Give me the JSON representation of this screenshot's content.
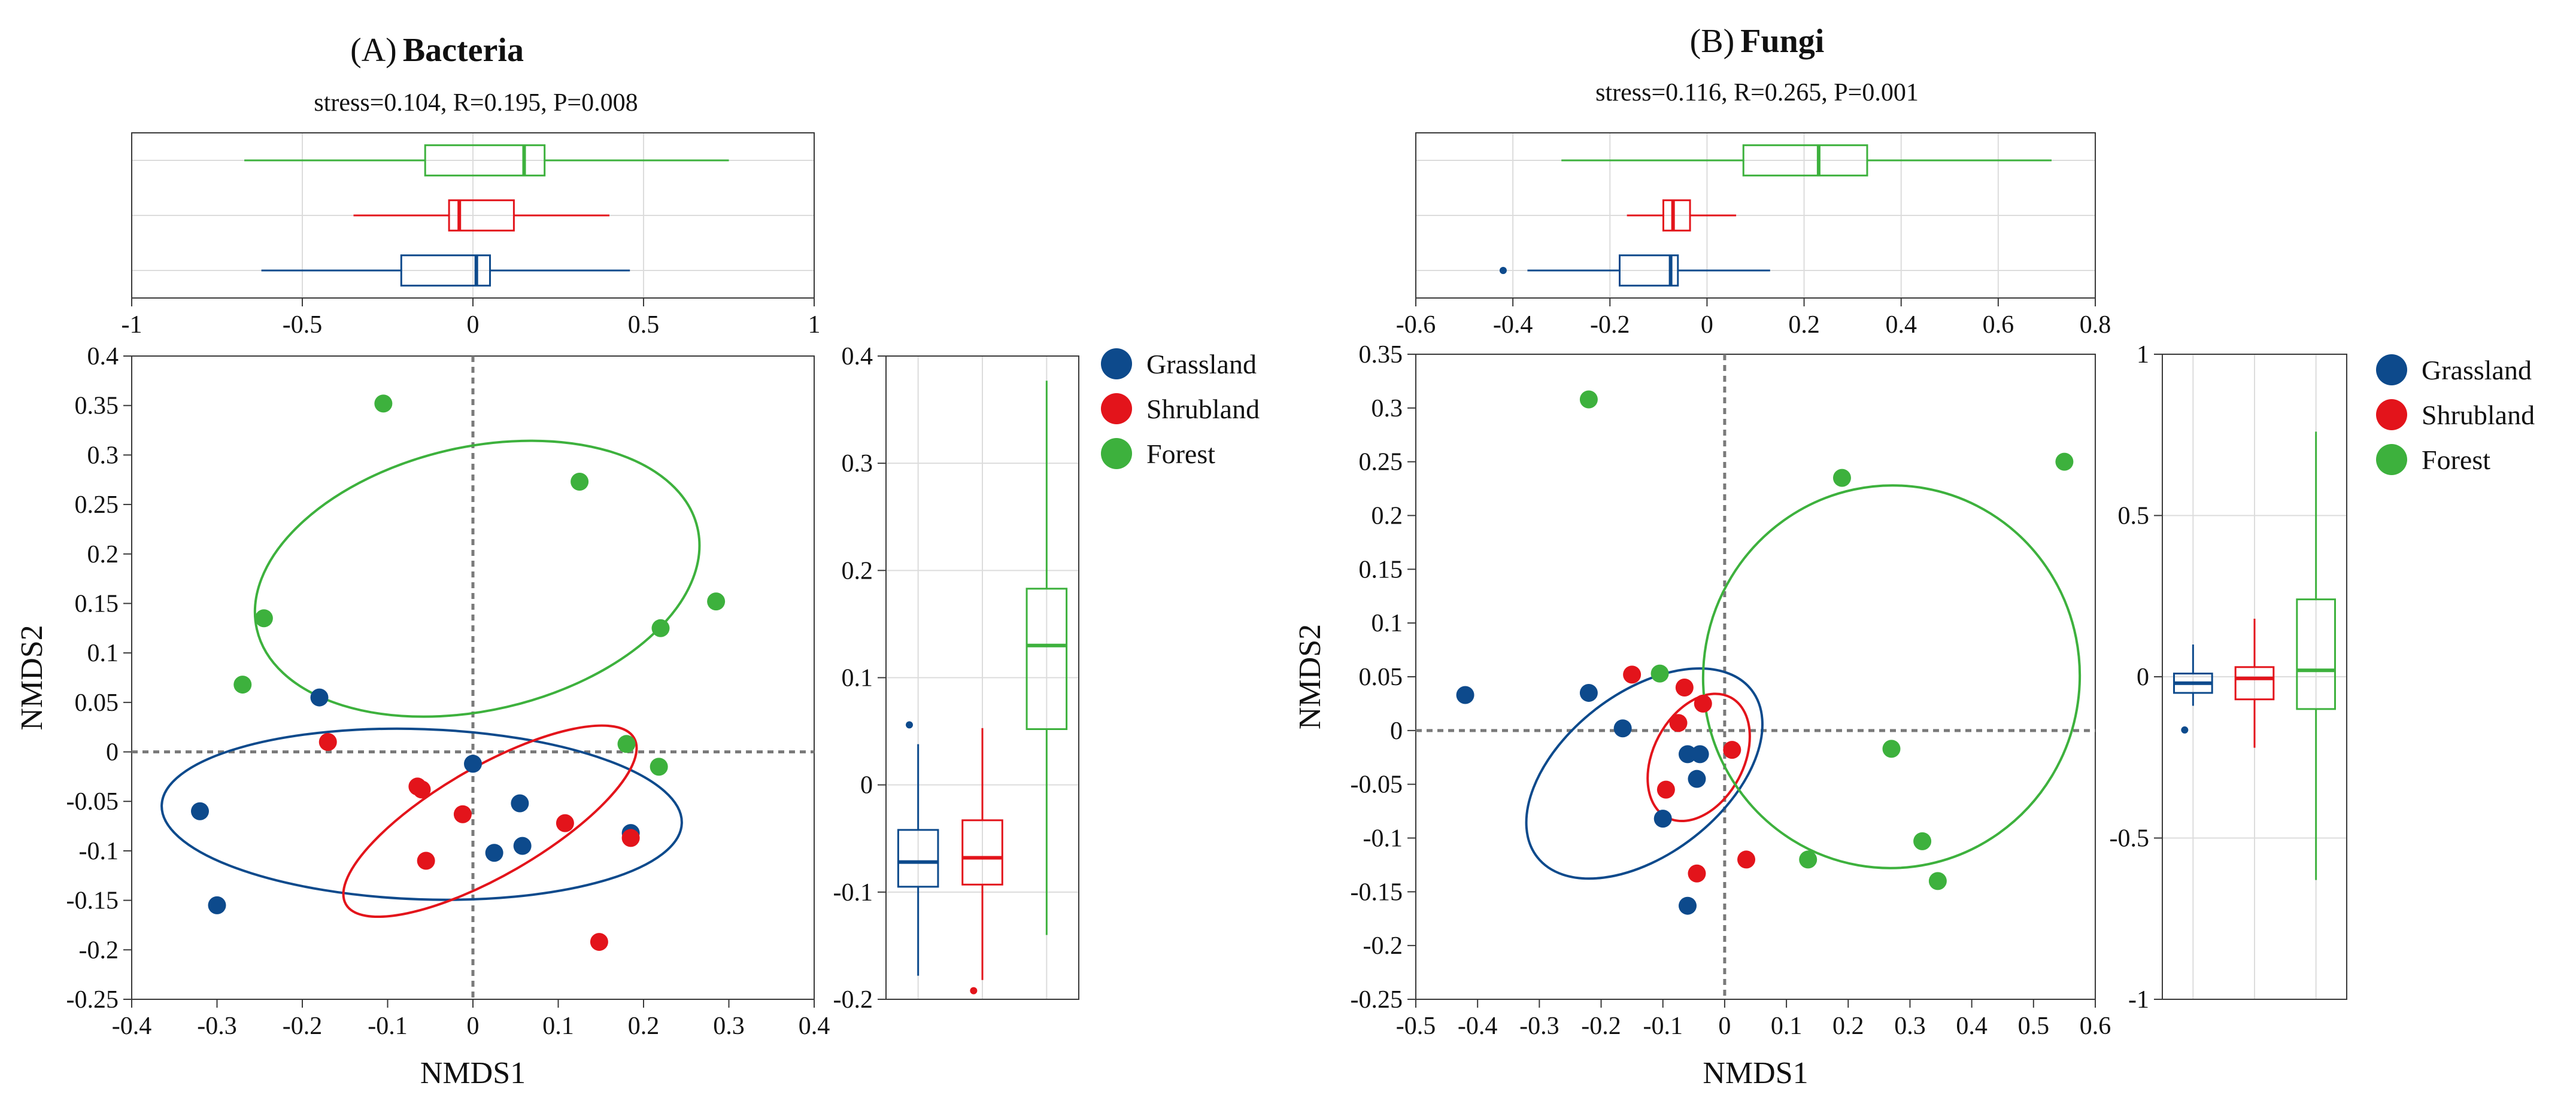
{
  "colors": {
    "grassland": "#0d4a8c",
    "shrubland": "#e3141b",
    "forest": "#3db13d",
    "grid": "#dcdcdc",
    "zero_line": "#7a7a7a",
    "frame": "#3a3a3a"
  },
  "legend": {
    "items": [
      {
        "key": "grassland",
        "label": "Grassland"
      },
      {
        "key": "shrubland",
        "label": "Shrubland"
      },
      {
        "key": "forest",
        "label": "Forest"
      }
    ]
  },
  "chart_data": [
    {
      "type": "scatter",
      "panel_label": "(A)",
      "title": "Bacteria",
      "subtitle": "stress=0.104, R=0.195, P=0.008",
      "xlabel": "NMDS1",
      "ylabel": "NMDS2",
      "xlim": [
        -0.4,
        0.4
      ],
      "ylim": [
        -0.25,
        0.4
      ],
      "x_ticks": [
        -0.4,
        -0.3,
        -0.2,
        -0.1,
        0,
        0.1,
        0.2,
        0.3,
        0.4
      ],
      "x_tick_labels": [
        "-0.4",
        "-0.3",
        "-0.2",
        "-0.1",
        "0",
        "0.1",
        "0.2",
        "0.3",
        "0.4"
      ],
      "y_ticks": [
        -0.25,
        -0.2,
        -0.15,
        -0.1,
        -0.05,
        0,
        0.05,
        0.1,
        0.15,
        0.2,
        0.25,
        0.3,
        0.35,
        0.4
      ],
      "y_tick_labels": [
        "-0.25",
        "-0.2",
        "-0.15",
        "-0.1",
        "-0.05",
        "0",
        "0.05",
        "0.1",
        "0.15",
        "0.2",
        "0.25",
        "0.3",
        "0.35",
        "0.4"
      ],
      "series": [
        {
          "name": "Grassland",
          "key": "grassland",
          "points": [
            [
              -0.18,
              0.055
            ],
            [
              0,
              -0.012
            ],
            [
              -0.32,
              -0.06
            ],
            [
              -0.3,
              -0.155
            ],
            [
              0.055,
              -0.052
            ],
            [
              0.025,
              -0.102
            ],
            [
              0.058,
              -0.095
            ],
            [
              0.185,
              -0.082
            ]
          ]
        },
        {
          "name": "Shrubland",
          "key": "shrubland",
          "points": [
            [
              -0.17,
              0.01
            ],
            [
              -0.065,
              -0.035
            ],
            [
              -0.06,
              -0.038
            ],
            [
              -0.012,
              -0.063
            ],
            [
              -0.055,
              -0.11
            ],
            [
              0.108,
              -0.072
            ],
            [
              0.185,
              -0.087
            ],
            [
              0.148,
              -0.192
            ]
          ]
        },
        {
          "name": "Forest",
          "key": "forest",
          "points": [
            [
              -0.105,
              0.352
            ],
            [
              0.125,
              0.273
            ],
            [
              -0.245,
              0.135
            ],
            [
              0.285,
              0.152
            ],
            [
              0.22,
              0.125
            ],
            [
              -0.27,
              0.068
            ],
            [
              0.18,
              0.008
            ],
            [
              0.218,
              -0.015
            ]
          ]
        }
      ],
      "ellipses": [
        {
          "key": "grassland",
          "center": [
            -0.06,
            -0.063
          ],
          "rx": 0.305,
          "ry": 0.086,
          "angle": 2
        },
        {
          "key": "shrubland",
          "center": [
            0.02,
            -0.07
          ],
          "rx": 0.195,
          "ry": 0.055,
          "angle": -30
        },
        {
          "key": "forest",
          "center": [
            0.005,
            0.175
          ],
          "rx": 0.265,
          "ry": 0.133,
          "angle": -13
        }
      ],
      "top_boxplot": {
        "xlim": [
          -1,
          1
        ],
        "x_ticks": [
          -1,
          -0.5,
          0,
          0.5,
          1
        ],
        "x_tick_labels": [
          "-1",
          "-0.5",
          "0",
          "0.5",
          "1"
        ],
        "boxes": [
          {
            "key": "forest",
            "whisker_low": -0.67,
            "q1": -0.14,
            "median": 0.15,
            "q3": 0.21,
            "whisker_high": 0.75,
            "outliers": []
          },
          {
            "key": "shrubland",
            "whisker_low": -0.35,
            "q1": -0.07,
            "median": -0.04,
            "q3": 0.12,
            "whisker_high": 0.4,
            "outliers": []
          },
          {
            "key": "grassland",
            "whisker_low": -0.62,
            "q1": -0.21,
            "median": 0.01,
            "q3": 0.05,
            "whisker_high": 0.46,
            "outliers": []
          }
        ]
      },
      "right_boxplot": {
        "ylim": [
          -0.2,
          0.4
        ],
        "y_ticks": [
          -0.2,
          -0.1,
          0,
          0.1,
          0.2,
          0.3,
          0.4
        ],
        "y_tick_labels": [
          "-0.2",
          "-0.1",
          "0",
          "0.1",
          "0.2",
          "0.3",
          "0.4"
        ],
        "boxes": [
          {
            "key": "grassland",
            "whisker_low": -0.178,
            "q1": -0.095,
            "median": -0.072,
            "q3": -0.042,
            "whisker_high": 0.038,
            "outliers": [
              0.056
            ]
          },
          {
            "key": "shrubland",
            "whisker_low": -0.182,
            "q1": -0.093,
            "median": -0.068,
            "q3": -0.033,
            "whisker_high": 0.053,
            "outliers": [
              -0.192
            ]
          },
          {
            "key": "forest",
            "whisker_low": -0.14,
            "q1": 0.052,
            "median": 0.13,
            "q3": 0.183,
            "whisker_high": 0.377,
            "outliers": []
          }
        ]
      }
    },
    {
      "type": "scatter",
      "panel_label": "(B)",
      "title": "Fungi",
      "subtitle": "stress=0.116, R=0.265, P=0.001",
      "xlabel": "NMDS1",
      "ylabel": "NMDS2",
      "xlim": [
        -0.5,
        0.6
      ],
      "ylim": [
        -0.25,
        0.35
      ],
      "x_ticks": [
        -0.5,
        -0.4,
        -0.3,
        -0.2,
        -0.1,
        0,
        0.1,
        0.2,
        0.3,
        0.4,
        0.5,
        0.6
      ],
      "x_tick_labels": [
        "-0.5",
        "-0.4",
        "-0.3",
        "-0.2",
        "-0.1",
        "0",
        "0.1",
        "0.2",
        "0.3",
        "0.4",
        "0.5",
        "0.6"
      ],
      "y_ticks": [
        -0.25,
        -0.2,
        -0.15,
        -0.1,
        -0.05,
        0,
        0.05,
        0.1,
        0.15,
        0.2,
        0.25,
        0.3,
        0.35
      ],
      "y_tick_labels": [
        "-0.25",
        "-0.2",
        "-0.15",
        "-0.1",
        "-0.05",
        "0",
        "0.05",
        "0.1",
        "0.15",
        "0.2",
        "0.25",
        "0.3",
        "0.35"
      ],
      "series": [
        {
          "name": "Grassland",
          "key": "grassland",
          "points": [
            [
              -0.42,
              0.033
            ],
            [
              -0.22,
              0.035
            ],
            [
              -0.165,
              0.002
            ],
            [
              -0.06,
              -0.022
            ],
            [
              -0.04,
              -0.022
            ],
            [
              -0.045,
              -0.045
            ],
            [
              -0.1,
              -0.082
            ],
            [
              -0.06,
              -0.163
            ]
          ]
        },
        {
          "name": "Shrubland",
          "key": "shrubland",
          "points": [
            [
              -0.15,
              0.052
            ],
            [
              -0.065,
              0.04
            ],
            [
              -0.035,
              0.025
            ],
            [
              -0.075,
              0.007
            ],
            [
              0.012,
              -0.018
            ],
            [
              -0.095,
              -0.055
            ],
            [
              0.035,
              -0.12
            ],
            [
              -0.045,
              -0.133
            ]
          ]
        },
        {
          "name": "Forest",
          "key": "forest",
          "points": [
            [
              -0.22,
              0.308
            ],
            [
              0.55,
              0.25
            ],
            [
              0.19,
              0.235
            ],
            [
              -0.105,
              0.053
            ],
            [
              0.27,
              -0.017
            ],
            [
              0.135,
              -0.12
            ],
            [
              0.32,
              -0.103
            ],
            [
              0.345,
              -0.14
            ]
          ]
        }
      ],
      "ellipses": [
        {
          "key": "grassland",
          "center": [
            -0.13,
            -0.04
          ],
          "rx": 0.22,
          "ry": 0.075,
          "angle": -38
        },
        {
          "key": "shrubland",
          "center": [
            -0.042,
            -0.025
          ],
          "rx": 0.11,
          "ry": 0.042,
          "angle": -62
        },
        {
          "key": "forest",
          "center": [
            0.27,
            0.05
          ],
          "rx": 0.31,
          "ry": 0.175,
          "angle": -80
        }
      ],
      "top_boxplot": {
        "xlim": [
          -0.6,
          0.8
        ],
        "x_ticks": [
          -0.6,
          -0.4,
          -0.2,
          0,
          0.2,
          0.4,
          0.6,
          0.8
        ],
        "x_tick_labels": [
          "-0.6",
          "-0.4",
          "-0.2",
          "0",
          "0.2",
          "0.4",
          "0.6",
          "0.8"
        ],
        "boxes": [
          {
            "key": "forest",
            "whisker_low": -0.3,
            "q1": 0.075,
            "median": 0.23,
            "q3": 0.33,
            "whisker_high": 0.71,
            "outliers": []
          },
          {
            "key": "shrubland",
            "whisker_low": -0.165,
            "q1": -0.09,
            "median": -0.07,
            "q3": -0.035,
            "whisker_high": 0.06,
            "outliers": []
          },
          {
            "key": "grassland",
            "whisker_low": -0.37,
            "q1": -0.18,
            "median": -0.075,
            "q3": -0.06,
            "whisker_high": 0.13,
            "outliers": [
              -0.42
            ]
          }
        ]
      },
      "right_boxplot": {
        "ylim": [
          -1,
          1
        ],
        "y_ticks": [
          -1,
          -0.5,
          0,
          0.5,
          1
        ],
        "y_tick_labels": [
          "-1",
          "-0.5",
          "0",
          "0.5",
          "1"
        ],
        "boxes": [
          {
            "key": "grassland",
            "whisker_low": -0.09,
            "q1": -0.05,
            "median": -0.02,
            "q3": 0.01,
            "whisker_high": 0.1,
            "outliers": [
              -0.165
            ]
          },
          {
            "key": "shrubland",
            "whisker_low": -0.22,
            "q1": -0.07,
            "median": -0.005,
            "q3": 0.03,
            "whisker_high": 0.18,
            "outliers": []
          },
          {
            "key": "forest",
            "whisker_low": -0.63,
            "q1": -0.1,
            "median": 0.02,
            "q3": 0.24,
            "whisker_high": 0.76,
            "outliers": []
          }
        ]
      }
    }
  ]
}
